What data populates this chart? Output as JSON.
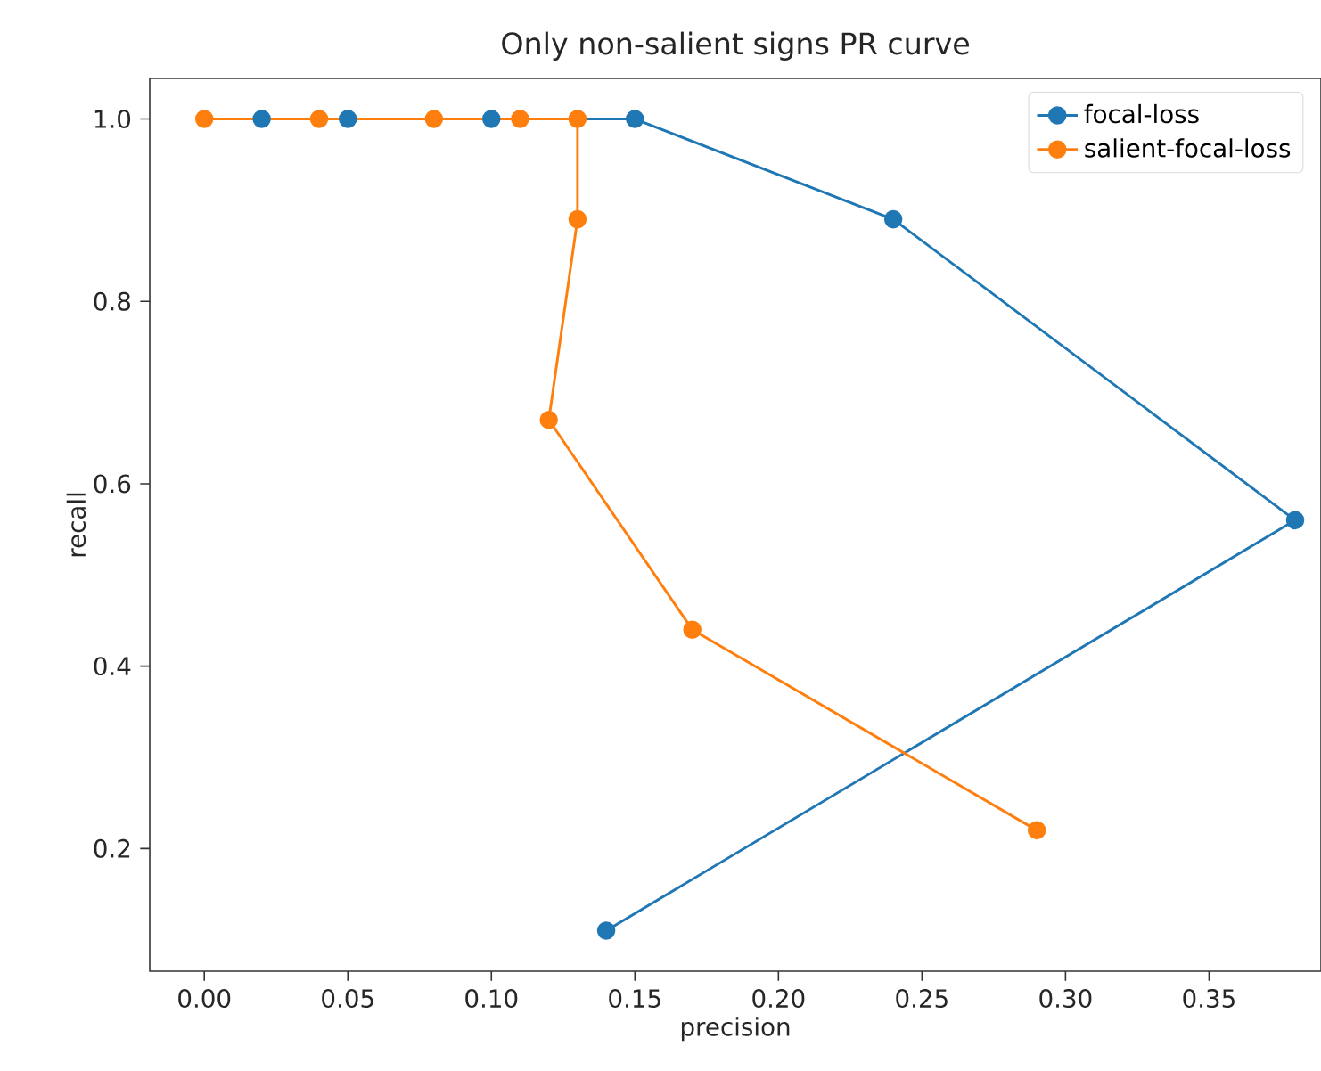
{
  "chart_data": {
    "type": "line",
    "title": "Only non-salient signs PR curve",
    "xlabel": "precision",
    "ylabel": "recall",
    "xlim": [
      -0.019,
      0.389
    ],
    "ylim": [
      0.0655,
      1.0445
    ],
    "xticks": [
      {
        "value": 0,
        "label": "0.00"
      },
      0.05,
      {
        "value": 0.1,
        "label": "0.10"
      },
      0.15,
      {
        "value": 0.2,
        "label": "0.20"
      },
      0.25,
      {
        "value": 0.3,
        "label": "0.30"
      },
      0.35
    ],
    "yticks": [
      0.2,
      0.4,
      0.6,
      0.8,
      {
        "value": 1,
        "label": "1.0"
      }
    ],
    "marker": "circle",
    "legend": "top right",
    "series": [
      {
        "name": "focal-loss",
        "color": "#1f77b4",
        "x": [
          0.02,
          0.05,
          0.1,
          0.15,
          0.24,
          0.38,
          0.14
        ],
        "values": [
          1.0,
          1.0,
          1.0,
          1.0,
          0.89,
          0.56,
          0.11
        ]
      },
      {
        "name": "salient-focal-loss",
        "color": "#ff7f0e",
        "x": [
          0.0,
          0.04,
          0.08,
          0.11,
          0.13,
          0.13,
          0.12,
          0.17,
          0.29
        ],
        "values": [
          1.0,
          1.0,
          1.0,
          1.0,
          1.0,
          0.89,
          0.67,
          0.44,
          0.22
        ]
      }
    ]
  }
}
